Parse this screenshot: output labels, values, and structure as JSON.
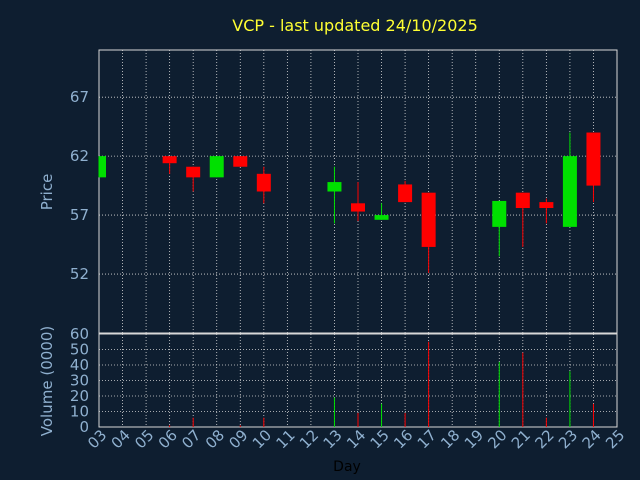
{
  "chart_data": {
    "type": "candlestick",
    "title": "VCP - last updated 24/10/2025",
    "xlabel": "Day",
    "price_panel": {
      "ylabel": "Price",
      "yticks": [
        52,
        57,
        62,
        67
      ],
      "ylim": [
        47,
        71
      ]
    },
    "volume_panel": {
      "ylabel": "Volume (0000)",
      "yticks": [
        0,
        10,
        20,
        30,
        40,
        50,
        60
      ],
      "ylim": [
        0,
        60
      ]
    },
    "x_ticks": [
      "03",
      "04",
      "05",
      "06",
      "07",
      "08",
      "09",
      "10",
      "11",
      "12",
      "13",
      "14",
      "15",
      "16",
      "17",
      "18",
      "19",
      "20",
      "21",
      "22",
      "23",
      "24",
      "25"
    ],
    "candles": [
      {
        "day": "03",
        "open": 60.2,
        "close": 62.0,
        "high": 62.0,
        "low": 60.2,
        "volume": 0
      },
      {
        "day": "06",
        "open": 62.0,
        "close": 61.4,
        "high": 62.0,
        "low": 60.5,
        "volume": 1
      },
      {
        "day": "07",
        "open": 61.1,
        "close": 60.2,
        "high": 61.1,
        "low": 59.0,
        "volume": 6
      },
      {
        "day": "08",
        "open": 60.2,
        "close": 62.0,
        "high": 62.0,
        "low": 60.2,
        "volume": 0
      },
      {
        "day": "09",
        "open": 62.0,
        "close": 61.1,
        "high": 62.0,
        "low": 61.1,
        "volume": 1
      },
      {
        "day": "10",
        "open": 60.5,
        "close": 59.0,
        "high": 61.1,
        "low": 58.0,
        "volume": 6
      },
      {
        "day": "13",
        "open": 59.0,
        "close": 59.8,
        "high": 61.1,
        "low": 56.3,
        "volume": 19
      },
      {
        "day": "14",
        "open": 58.0,
        "close": 57.3,
        "high": 59.8,
        "low": 56.5,
        "volume": 9
      },
      {
        "day": "15",
        "open": 56.6,
        "close": 57.0,
        "high": 58.0,
        "low": 56.6,
        "volume": 15
      },
      {
        "day": "16",
        "open": 59.6,
        "close": 58.1,
        "high": 59.9,
        "low": 58.1,
        "volume": 9
      },
      {
        "day": "17",
        "open": 58.9,
        "close": 54.3,
        "high": 58.9,
        "low": 52.1,
        "volume": 55
      },
      {
        "day": "20",
        "open": 56.0,
        "close": 58.2,
        "high": 58.2,
        "low": 53.5,
        "volume": 42
      },
      {
        "day": "21",
        "open": 58.9,
        "close": 57.6,
        "high": 58.9,
        "low": 54.3,
        "volume": 48
      },
      {
        "day": "22",
        "open": 58.1,
        "close": 57.6,
        "high": 58.4,
        "low": 56.3,
        "volume": 6
      },
      {
        "day": "23",
        "open": 56.0,
        "close": 62.0,
        "high": 64.0,
        "low": 56.0,
        "volume": 36
      },
      {
        "day": "24",
        "open": 64.0,
        "close": 59.5,
        "high": 64.0,
        "low": 58.1,
        "volume": 15
      }
    ],
    "colors": {
      "background": "#0e1e30",
      "up": "#00e000",
      "down": "#ff0000",
      "grid": "#d8d8d8",
      "text": "#8fb0cf",
      "title": "#ffff33"
    },
    "grid": true
  }
}
